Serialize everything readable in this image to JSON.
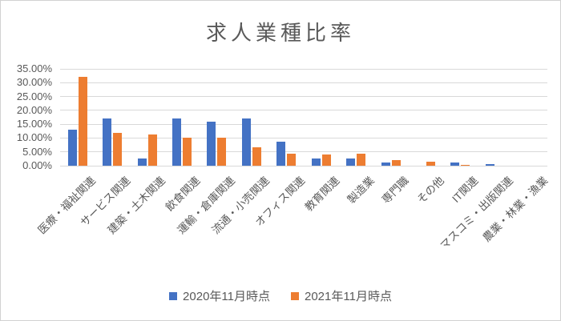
{
  "chart_title": "求人業種比率",
  "colors": {
    "series_2020": "#4472C4",
    "series_2021": "#ED7D31",
    "gridline": "#d9d9d9",
    "axis_text": "#595959",
    "title_text": "#595959",
    "frame_border": "#d2d2d2"
  },
  "chart_data": {
    "type": "bar",
    "title": "求人業種比率",
    "categories": [
      "医療・福祉関連",
      "サービス関連",
      "建築・土木関連",
      "飲食関連",
      "運輸・倉庫関連",
      "流通・小売関連",
      "オフィス関連",
      "教育関連",
      "製造業",
      "専門職",
      "その他",
      "IT関連",
      "マスコミ・出版関連",
      "農業・林業・漁業"
    ],
    "series": [
      {
        "name": "2020年11月時点",
        "color": "#4472C4",
        "values": [
          13.0,
          17.0,
          2.7,
          17.0,
          15.8,
          17.2,
          8.6,
          2.5,
          2.5,
          1.3,
          0.0,
          1.3,
          0.7,
          0.0
        ]
      },
      {
        "name": "2021年11月時点",
        "color": "#ED7D31",
        "values": [
          32.0,
          12.0,
          11.2,
          10.2,
          10.1,
          6.7,
          4.2,
          4.1,
          4.4,
          2.0,
          1.5,
          0.4,
          0.0,
          0.0
        ]
      }
    ],
    "ylim": [
      0,
      35
    ],
    "y_ticks": [
      {
        "v": 0,
        "label": "0.00%"
      },
      {
        "v": 5,
        "label": "5.00%"
      },
      {
        "v": 10,
        "label": "10.00%"
      },
      {
        "v": 15,
        "label": "15.00%"
      },
      {
        "v": 20,
        "label": "20.00%"
      },
      {
        "v": 25,
        "label": "25.00%"
      },
      {
        "v": 30,
        "label": "30.00%"
      },
      {
        "v": 35,
        "label": "35.00%"
      }
    ],
    "grid": true,
    "legend_position": "bottom"
  }
}
